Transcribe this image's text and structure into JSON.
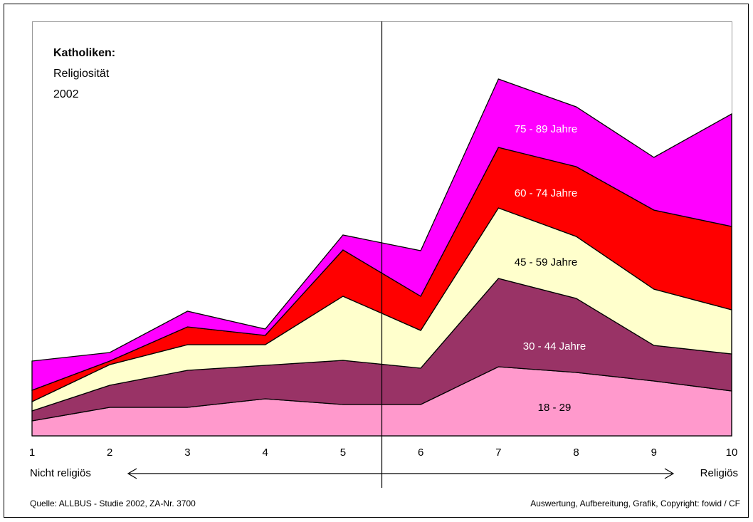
{
  "chart_data": {
    "type": "stacked_area",
    "title": "Katholiken:",
    "subtitle": "Religiosität",
    "year": "2002",
    "x": [
      1,
      2,
      3,
      4,
      5,
      6,
      7,
      8,
      9,
      10
    ],
    "xlim": [
      1,
      10
    ],
    "xticks": [
      1,
      2,
      3,
      4,
      5,
      6,
      7,
      8,
      9,
      10
    ],
    "x_axis_left": "Nicht religiös",
    "x_axis_right": "Religiös",
    "divider_x": 5.5,
    "series": [
      {
        "name": "18 - 29",
        "color": "#ff99cc",
        "label_color": "#000000",
        "values": [
          21,
          40,
          40,
          52,
          44,
          44,
          97,
          89,
          77,
          63
        ]
      },
      {
        "name": "30 - 44 Jahre",
        "color": "#993366",
        "label_color": "#ffffff",
        "values": [
          14,
          31,
          52,
          47,
          62,
          51,
          124,
          104,
          50,
          52
        ]
      },
      {
        "name": "45 - 59 Jahre",
        "color": "#ffffcc",
        "label_color": "#000000",
        "values": [
          13,
          29,
          36,
          29,
          90,
          53,
          99,
          87,
          79,
          62
        ]
      },
      {
        "name": "60 - 74 Jahre",
        "color": "#ff0000",
        "label_color": "#ffffff",
        "values": [
          16,
          5,
          25,
          13,
          65,
          48,
          85,
          98,
          111,
          117
        ]
      },
      {
        "name": "75 - 89 Jahre",
        "color": "#ff00ff",
        "label_color": "#ffffff",
        "values": [
          41,
          12,
          22,
          9,
          21,
          64,
          96,
          84,
          74,
          158
        ]
      }
    ],
    "source": "Quelle: ALLBUS - Studie 2002, ZA-Nr. 3700",
    "credit": "Auswertung, Aufbereitung, Grafik, Copyright: fowid / CF"
  }
}
